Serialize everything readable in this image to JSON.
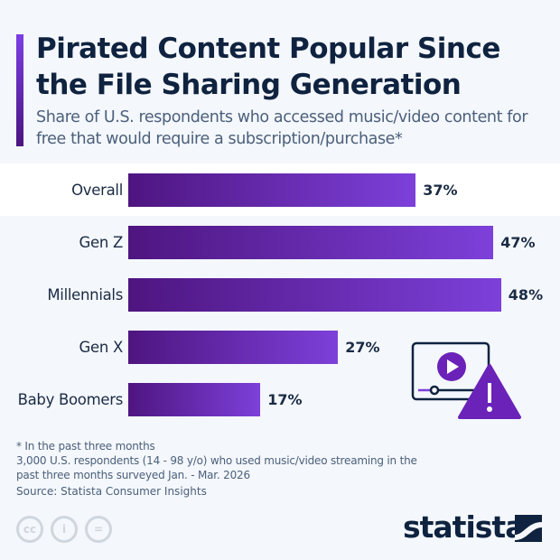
{
  "title": "Pirated Content Popular Since the File Sharing Generation",
  "subtitle": "Share of U.S. respondents who accessed music/video content for free that would require a subscription/purchase*",
  "chart_data": {
    "type": "bar",
    "orientation": "horizontal",
    "categories": [
      "Overall",
      "Gen Z",
      "Millennials",
      "Gen X",
      "Baby Boomers"
    ],
    "values": [
      37,
      47,
      48,
      27,
      17
    ],
    "value_labels": [
      "37%",
      "47%",
      "48%",
      "27%",
      "17%"
    ],
    "unit": "%",
    "highlighted": "Overall",
    "grid": false,
    "colors": {
      "bar_start": "#4e1580",
      "bar_end": "#7d40da"
    }
  },
  "notes": [
    "* In the past three months",
    "3,000 U.S. respondents (14 - 98 y/o) who used music/video streaming in the",
    "past three months surveyed Jan. - Mar. 2026"
  ],
  "source": "Source: Statista Consumer Insights",
  "logo": "statista",
  "license_icons": [
    "cc-icon",
    "attribution-icon",
    "no-derivatives-icon"
  ],
  "illustration": "video-player-warning-icon"
}
